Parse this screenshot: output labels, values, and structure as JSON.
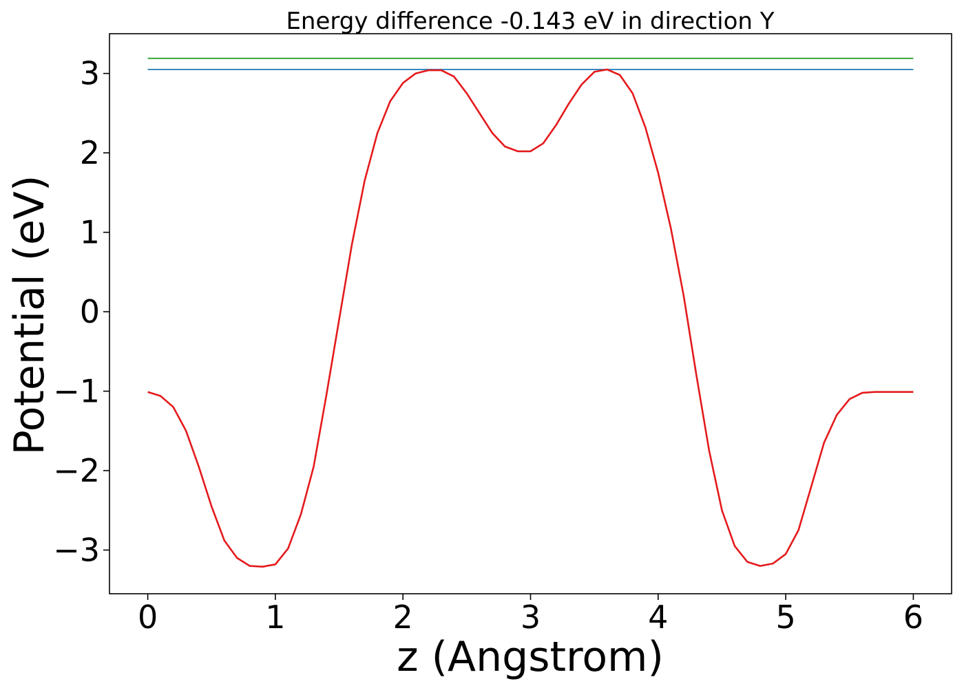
{
  "chart_data": {
    "type": "line",
    "title": "Energy difference -0.143 eV in direction Y",
    "xlabel": "z (Angstrom)",
    "ylabel": "Potential (eV)",
    "xlim": [
      -0.3,
      6.3
    ],
    "ylim": [
      -3.55,
      3.5
    ],
    "xticks": [
      0,
      1,
      2,
      3,
      4,
      5,
      6
    ],
    "xtick_labels": [
      "0",
      "1",
      "2",
      "3",
      "4",
      "5",
      "6"
    ],
    "yticks": [
      -3,
      -2,
      -1,
      0,
      1,
      2,
      3
    ],
    "ytick_labels": [
      "−3",
      "−2",
      "−1",
      "0",
      "1",
      "2",
      "3"
    ],
    "grid": false,
    "series": [
      {
        "color": "#2ca02c",
        "x": [
          0,
          6
        ],
        "y": [
          3.19,
          3.19
        ]
      },
      {
        "color": "#1f77b4",
        "x": [
          0,
          6
        ],
        "y": [
          3.05,
          3.05
        ]
      },
      {
        "color": "#e41a1c",
        "x": [
          0,
          0.1,
          0.2,
          0.3,
          0.4,
          0.5,
          0.6,
          0.7,
          0.8,
          0.9,
          1.0,
          1.1,
          1.2,
          1.3,
          1.4,
          1.5,
          1.6,
          1.7,
          1.8,
          1.9,
          2.0,
          2.1,
          2.2,
          2.3,
          2.4,
          2.5,
          2.6,
          2.7,
          2.8,
          2.9,
          3.0,
          3.1,
          3.2,
          3.3,
          3.4,
          3.5,
          3.6,
          3.7,
          3.8,
          3.9,
          4.0,
          4.1,
          4.2,
          4.3,
          4.4,
          4.5,
          4.6,
          4.7,
          4.8,
          4.9,
          5.0,
          5.1,
          5.2,
          5.3,
          5.4,
          5.5,
          5.6,
          5.7,
          5.8,
          5.9,
          6.0
        ],
        "y": [
          -1.01,
          -1.06,
          -1.2,
          -1.5,
          -1.95,
          -2.45,
          -2.88,
          -3.1,
          -3.2,
          -3.21,
          -3.18,
          -2.98,
          -2.55,
          -1.95,
          -1.05,
          -0.1,
          0.85,
          1.65,
          2.25,
          2.65,
          2.88,
          3.0,
          3.04,
          3.04,
          2.96,
          2.75,
          2.5,
          2.25,
          2.08,
          2.02,
          2.02,
          2.12,
          2.35,
          2.62,
          2.86,
          3.02,
          3.05,
          2.98,
          2.75,
          2.32,
          1.75,
          1.05,
          0.2,
          -0.8,
          -1.75,
          -2.5,
          -2.95,
          -3.15,
          -3.2,
          -3.17,
          -3.05,
          -2.75,
          -2.2,
          -1.65,
          -1.3,
          -1.1,
          -1.02,
          -1.01,
          -1.01,
          -1.01,
          -1.01
        ]
      }
    ]
  }
}
